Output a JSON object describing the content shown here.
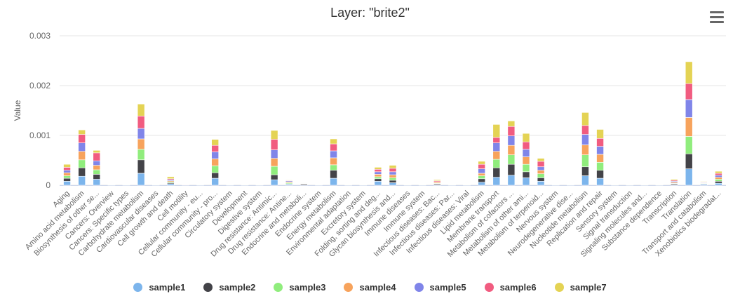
{
  "title": "Layer: \"brite2\"",
  "menu_icon": "hamburger-menu-icon",
  "chart_data": {
    "type": "bar",
    "stacked": true,
    "title": "Layer: \"brite2\"",
    "ylabel": "Value",
    "xlabel": "",
    "ylim": [
      0,
      0.003
    ],
    "yticks": [
      0,
      0.001,
      0.002,
      0.003
    ],
    "ytick_labels": [
      "0",
      "0.001",
      "0.002",
      "0.003"
    ],
    "grid": true,
    "legend_position": "bottom",
    "categories": [
      "Aging",
      "Amino acid metabolism",
      "Biosynthesis of other se...",
      "Cancers: Overview",
      "Cancers: Specific types",
      "Carbohydrate metabolism",
      "Cardiovascular diseases",
      "Cell growth and death",
      "Cell motility",
      "Cellular community - eu...",
      "Cellular community - pro...",
      "Circulatory system",
      "Development",
      "Digestive system",
      "Drug resistance: Antimic...",
      "Drug resistance: Antine...",
      "Endocrine and metaboli...",
      "Endocrine system",
      "Energy metabolism",
      "Environmental adaptation",
      "Excretory system",
      "Folding, sorting and deg...",
      "Glycan biosynthesis and...",
      "Immune diseases",
      "Immune system",
      "Infectious diseases: Bac...",
      "Infectious diseases: Par...",
      "Infectious diseases: Viral",
      "Lipid metabolism",
      "Membrane transport",
      "Metabolism of cofactors ...",
      "Metabolism of other ami...",
      "Metabolism of terpenoid...",
      "Nervous system",
      "Neurodegenerative dise...",
      "Nucleotide metabolism",
      "Replication and repair",
      "Sensory system",
      "Signal transduction",
      "Signaling molecules and...",
      "Substance dependence",
      "Transcription",
      "Translation",
      "Transport and catabolism",
      "Xenobiotics biodegradat..."
    ],
    "series": [
      {
        "name": "sample1",
        "color": "#7cb5ec",
        "values": [
          8e-05,
          0.00018,
          0.00012,
          3e-06,
          3e-06,
          0.00024,
          3e-06,
          3e-05,
          4e-06,
          3e-06,
          0.00014,
          3e-06,
          2e-06,
          2e-06,
          0.00011,
          2e-05,
          3e-06,
          3e-06,
          0.00014,
          2e-06,
          2e-06,
          8e-05,
          5e-05,
          2e-06,
          2e-06,
          1e-05,
          2e-06,
          2e-06,
          6e-05,
          0.00016,
          0.0002,
          0.00015,
          8e-05,
          3e-06,
          3e-06,
          0.00019,
          0.00014,
          2e-06,
          2e-06,
          2e-06,
          2e-06,
          1e-05,
          0.00033,
          2e-05,
          4e-05
        ]
      },
      {
        "name": "sample2",
        "color": "#434348",
        "values": [
          6e-05,
          0.00017,
          0.0001,
          3e-06,
          3e-06,
          0.00027,
          3e-06,
          2e-05,
          4e-06,
          3e-06,
          0.00011,
          3e-06,
          2e-06,
          2e-06,
          0.0001,
          1e-05,
          2e-05,
          3e-06,
          0.00016,
          2e-06,
          2e-06,
          5e-05,
          5e-05,
          2e-06,
          2e-06,
          2e-05,
          2e-06,
          2e-06,
          7e-05,
          0.00019,
          0.00022,
          0.00012,
          7e-05,
          3e-06,
          3e-06,
          0.00018,
          0.00016,
          2e-06,
          2e-06,
          2e-06,
          2e-06,
          2e-05,
          0.0003,
          1e-05,
          4e-05
        ]
      },
      {
        "name": "sample3",
        "color": "#90ed7d",
        "values": [
          5e-05,
          0.00016,
          9e-05,
          3e-06,
          3e-06,
          0.00021,
          3e-06,
          2e-05,
          4e-06,
          3e-06,
          0.00014,
          3e-06,
          2e-06,
          2e-06,
          0.00017,
          2e-05,
          3e-06,
          3e-06,
          0.00011,
          2e-06,
          2e-06,
          4e-05,
          5e-05,
          2e-06,
          2e-06,
          1e-05,
          2e-06,
          2e-06,
          6e-05,
          0.00017,
          0.00019,
          0.00015,
          8e-05,
          3e-06,
          3e-06,
          0.00024,
          0.00016,
          2e-06,
          2e-06,
          2e-06,
          2e-06,
          1e-05,
          0.00035,
          1e-05,
          4e-05
        ]
      },
      {
        "name": "sample4",
        "color": "#f7a35c",
        "values": [
          6e-05,
          0.00017,
          9e-05,
          3e-06,
          3e-06,
          0.00021,
          3e-06,
          2e-05,
          4e-06,
          3e-06,
          0.00014,
          3e-06,
          2e-06,
          2e-06,
          0.00016,
          2e-05,
          3e-06,
          3e-06,
          0.00014,
          2e-06,
          2e-06,
          5e-05,
          6e-05,
          2e-06,
          2e-06,
          2e-05,
          2e-06,
          2e-06,
          5e-05,
          0.00016,
          0.00019,
          0.00015,
          7e-05,
          3e-06,
          3e-06,
          0.0002,
          0.00016,
          2e-06,
          2e-06,
          2e-06,
          2e-06,
          2e-05,
          0.00038,
          1e-05,
          4e-05
        ]
      },
      {
        "name": "sample5",
        "color": "#8085e9",
        "values": [
          5e-05,
          0.00017,
          9e-05,
          3e-06,
          3e-06,
          0.00021,
          3e-06,
          2e-05,
          4e-06,
          3e-06,
          0.00014,
          3e-06,
          2e-06,
          2e-06,
          0.00017,
          2e-05,
          3e-06,
          3e-06,
          0.00014,
          2e-06,
          2e-06,
          5e-05,
          6e-05,
          2e-06,
          2e-06,
          1e-05,
          2e-06,
          2e-06,
          9e-05,
          0.00017,
          0.00019,
          0.00015,
          7e-05,
          3e-06,
          3e-06,
          0.00021,
          0.00016,
          2e-06,
          2e-06,
          2e-06,
          2e-06,
          2e-05,
          0.00036,
          1e-05,
          4e-05
        ]
      },
      {
        "name": "sample6",
        "color": "#f15c80",
        "values": [
          6e-05,
          0.00017,
          0.00016,
          3e-06,
          3e-06,
          0.00025,
          3e-06,
          2e-05,
          4e-06,
          3e-06,
          0.00013,
          3e-06,
          2e-06,
          2e-06,
          0.00021,
          1e-05,
          3e-06,
          3e-06,
          0.00014,
          2e-06,
          2e-06,
          5e-05,
          7e-05,
          2e-06,
          2e-06,
          2e-05,
          2e-06,
          2e-06,
          9e-05,
          0.00011,
          0.00019,
          0.00015,
          0.00011,
          3e-06,
          3e-06,
          0.00018,
          0.00016,
          2e-06,
          2e-06,
          2e-06,
          2e-06,
          2e-05,
          0.00032,
          1e-05,
          4e-05
        ]
      },
      {
        "name": "sample7",
        "color": "#e4d354",
        "values": [
          6e-05,
          9e-05,
          5e-05,
          3e-06,
          3e-06,
          0.00024,
          3e-06,
          4e-05,
          4e-06,
          3e-06,
          0.00012,
          3e-06,
          2e-06,
          2e-06,
          0.00018,
          1e-05,
          3e-06,
          3e-06,
          0.0001,
          2e-06,
          2e-06,
          4e-05,
          6e-05,
          2e-06,
          2e-06,
          2e-05,
          2e-06,
          2e-06,
          6e-05,
          0.00026,
          0.00011,
          0.00017,
          6e-05,
          3e-06,
          3e-06,
          0.00026,
          0.00018,
          2e-06,
          2e-06,
          2e-06,
          2e-06,
          2e-05,
          0.00044,
          1e-05,
          4e-05
        ]
      }
    ]
  }
}
